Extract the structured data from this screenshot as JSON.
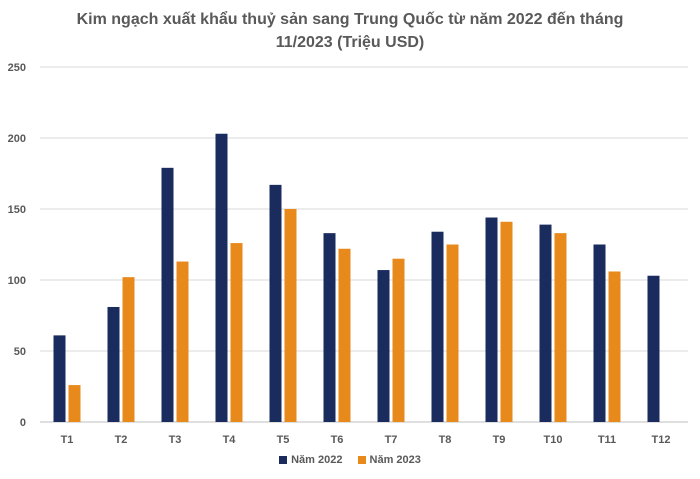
{
  "chart_data": {
    "type": "bar",
    "title_line1": "Kim ngạch xuất khẩu thuỷ sản sang Trung Quốc từ năm 2022 đến tháng",
    "title_line2": "11/2023 (Triệu USD)",
    "categories": [
      "T1",
      "T2",
      "T3",
      "T4",
      "T5",
      "T6",
      "T7",
      "T8",
      "T9",
      "T10",
      "T11",
      "T12"
    ],
    "series": [
      {
        "name": "Năm 2022",
        "color": "#1a2b5e",
        "values": [
          61,
          81,
          179,
          203,
          167,
          133,
          107,
          134,
          144,
          139,
          125,
          103
        ]
      },
      {
        "name": "Năm 2023",
        "color": "#e8891c",
        "values": [
          26,
          102,
          113,
          126,
          150,
          122,
          115,
          125,
          141,
          133,
          106,
          null
        ]
      }
    ],
    "yticks": [
      0,
      50,
      100,
      150,
      200,
      250
    ],
    "ylim": [
      0,
      250
    ],
    "grid": true,
    "legend_position": "bottom"
  }
}
